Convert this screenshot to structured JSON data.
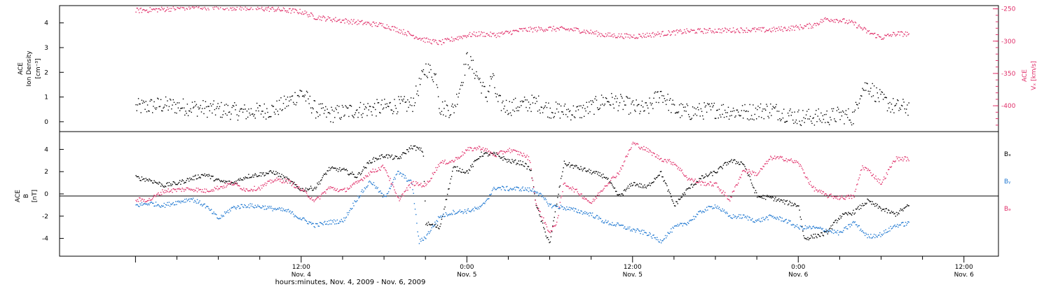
{
  "colors": {
    "black": "#000000",
    "pink": "#e0306a",
    "blue": "#1f78d1"
  },
  "x_axis": {
    "title": "hours:minutes, Nov.  4, 2009 - Nov.  6, 2009",
    "range_hours": [
      -5.5,
      62.5
    ],
    "ticks": [
      {
        "hour": 12,
        "time": "12:00",
        "date": "Nov. 4"
      },
      {
        "hour": 24,
        "time": "0:00",
        "date": "Nov. 5"
      },
      {
        "hour": 36,
        "time": "12:00",
        "date": "Nov. 5"
      },
      {
        "hour": 48,
        "time": "0:00",
        "date": "Nov. 6"
      },
      {
        "hour": 60,
        "time": "12:00",
        "date": "Nov. 6"
      }
    ]
  },
  "top_panel": {
    "left_label": [
      "ACE",
      "Ion Density",
      "[cm⁻³]"
    ],
    "right_label": [
      "ACE",
      "Vₓ [km/s]"
    ],
    "left_ticks": [
      "0",
      "1",
      "2",
      "3",
      "4"
    ],
    "right_ticks": [
      "-250",
      "-300",
      "-350",
      "-400"
    ]
  },
  "bottom_panel": {
    "left_label": [
      "ACE",
      "B",
      "[nT]"
    ],
    "left_ticks": [
      "4",
      "2",
      "0",
      "-2",
      "-4"
    ],
    "legend": [
      "Bₓ",
      "Bᵧ",
      "Bₔ"
    ]
  },
  "chart_data": [
    {
      "type": "scatter",
      "panel": "top",
      "ylabel": "ACE Ion Density [cm⁻³]",
      "ylim": [
        -0.4,
        4.7
      ],
      "y2label": "ACE Vx [km/s]",
      "y2lim": [
        -440,
        -245
      ],
      "y2_inverted": true,
      "series": [
        {
          "axis": "left",
          "color": "black",
          "spread": 0.35,
          "points": [
            [
              0,
              0.6
            ],
            [
              2,
              0.7
            ],
            [
              4,
              0.6
            ],
            [
              6,
              0.5
            ],
            [
              8,
              0.4
            ],
            [
              10,
              0.5
            ],
            [
              11,
              0.8
            ],
            [
              12,
              1.2
            ],
            [
              13,
              0.5
            ],
            [
              14,
              0.3
            ],
            [
              15,
              0.4
            ],
            [
              16,
              0.5
            ],
            [
              18,
              0.6
            ],
            [
              19,
              0.7
            ],
            [
              20,
              0.7
            ],
            [
              21,
              2.2
            ],
            [
              21.8,
              1.8
            ],
            [
              22,
              0.6
            ],
            [
              23,
              0.5
            ],
            [
              23.6,
              1.7
            ],
            [
              24,
              2.6
            ],
            [
              24.8,
              1.8
            ],
            [
              25.4,
              1.0
            ],
            [
              25.8,
              1.9
            ],
            [
              26.2,
              0.8
            ],
            [
              27,
              0.6
            ],
            [
              28,
              0.7
            ],
            [
              29,
              0.8
            ],
            [
              30,
              0.5
            ],
            [
              32,
              0.4
            ],
            [
              33,
              0.6
            ],
            [
              34,
              0.9
            ],
            [
              35,
              0.8
            ],
            [
              36,
              0.6
            ],
            [
              37,
              0.5
            ],
            [
              38,
              1.2
            ],
            [
              39,
              0.5
            ],
            [
              40,
              0.4
            ],
            [
              42,
              0.5
            ],
            [
              44,
              0.4
            ],
            [
              46,
              0.5
            ],
            [
              48,
              0.2
            ],
            [
              50,
              0.2
            ],
            [
              51,
              0.3
            ],
            [
              52,
              0.2
            ],
            [
              52.5,
              1.3
            ],
            [
              53,
              1.5
            ],
            [
              54,
              0.9
            ],
            [
              55,
              0.6
            ],
            [
              56,
              0.6
            ]
          ]
        },
        {
          "axis": "right",
          "color": "pink",
          "spread": 4,
          "points": [
            [
              0,
              -252
            ],
            [
              2,
              -250
            ],
            [
              4,
              -247
            ],
            [
              6,
              -247
            ],
            [
              8,
              -248
            ],
            [
              10,
              -250
            ],
            [
              12,
              -254
            ],
            [
              13,
              -262
            ],
            [
              14,
              -265
            ],
            [
              16,
              -270
            ],
            [
              18,
              -275
            ],
            [
              19,
              -282
            ],
            [
              20,
              -290
            ],
            [
              21,
              -298
            ],
            [
              22,
              -302
            ],
            [
              24,
              -290
            ],
            [
              25,
              -288
            ],
            [
              26,
              -290
            ],
            [
              28,
              -282
            ],
            [
              30,
              -280
            ],
            [
              32,
              -282
            ],
            [
              34,
              -290
            ],
            [
              36,
              -292
            ],
            [
              38,
              -288
            ],
            [
              40,
              -284
            ],
            [
              42,
              -283
            ],
            [
              44,
              -282
            ],
            [
              46,
              -282
            ],
            [
              48,
              -278
            ],
            [
              49,
              -275
            ],
            [
              50,
              -265
            ],
            [
              51,
              -267
            ],
            [
              52,
              -272
            ],
            [
              53,
              -285
            ],
            [
              54,
              -294
            ],
            [
              55,
              -288
            ],
            [
              56,
              -288
            ]
          ]
        }
      ]
    },
    {
      "type": "scatter",
      "panel": "bottom",
      "ylabel": "ACE B [nT]",
      "ylim": [
        -5.6,
        5.6
      ],
      "series": [
        {
          "name": "Bx",
          "color": "black",
          "spread": 0.2,
          "points": [
            [
              0,
              1.5
            ],
            [
              1,
              1.3
            ],
            [
              2,
              0.8
            ],
            [
              3,
              1.0
            ],
            [
              4,
              1.4
            ],
            [
              5,
              1.8
            ],
            [
              6,
              1.2
            ],
            [
              7,
              1.0
            ],
            [
              8,
              1.6
            ],
            [
              9,
              1.8
            ],
            [
              10,
              2.0
            ],
            [
              11,
              1.3
            ],
            [
              12,
              0.4
            ],
            [
              13,
              0.6
            ],
            [
              14,
              2.3
            ],
            [
              15,
              2.2
            ],
            [
              16,
              1.6
            ],
            [
              17,
              3.0
            ],
            [
              18,
              3.5
            ],
            [
              19,
              3.2
            ],
            [
              20,
              4.3
            ],
            [
              20.8,
              3.9
            ],
            [
              21,
              -2.6
            ],
            [
              22,
              -3.0
            ],
            [
              23,
              2.4
            ],
            [
              24,
              2.0
            ],
            [
              25,
              3.6
            ],
            [
              26,
              3.6
            ],
            [
              27,
              3.0
            ],
            [
              28,
              2.8
            ],
            [
              28.6,
              2.2
            ],
            [
              29,
              -1.0
            ],
            [
              29.6,
              -3.3
            ],
            [
              30,
              -4.4
            ],
            [
              30.3,
              -2.0
            ],
            [
              31,
              2.8
            ],
            [
              32,
              2.4
            ],
            [
              33,
              2.0
            ],
            [
              34,
              1.6
            ],
            [
              35,
              -0.2
            ],
            [
              36,
              1.0
            ],
            [
              37,
              0.6
            ],
            [
              38,
              2.0
            ],
            [
              39,
              -1.0
            ],
            [
              40,
              0.5
            ],
            [
              41,
              1.5
            ],
            [
              42,
              2.0
            ],
            [
              43,
              3.0
            ],
            [
              44,
              2.8
            ],
            [
              45,
              -0.2
            ],
            [
              46,
              -0.3
            ],
            [
              47,
              -0.7
            ],
            [
              48,
              -1.0
            ],
            [
              48.4,
              -4.0
            ],
            [
              49,
              -3.8
            ],
            [
              50,
              -3.5
            ],
            [
              51,
              -2.0
            ],
            [
              52,
              -1.6
            ],
            [
              53,
              -0.6
            ],
            [
              54,
              -1.3
            ],
            [
              55,
              -1.8
            ],
            [
              56,
              -1.0
            ]
          ]
        },
        {
          "name": "By",
          "color": "blue",
          "spread": 0.2,
          "points": [
            [
              0,
              -1.0
            ],
            [
              1,
              -0.8
            ],
            [
              2,
              -1.0
            ],
            [
              3,
              -0.7
            ],
            [
              4,
              -0.4
            ],
            [
              5,
              -1.0
            ],
            [
              6,
              -2.2
            ],
            [
              7,
              -1.2
            ],
            [
              8,
              -1.0
            ],
            [
              9,
              -1.1
            ],
            [
              10,
              -1.3
            ],
            [
              11,
              -1.5
            ],
            [
              12,
              -2.2
            ],
            [
              13,
              -2.8
            ],
            [
              14,
              -2.5
            ],
            [
              15,
              -2.4
            ],
            [
              16,
              -0.4
            ],
            [
              17,
              1.2
            ],
            [
              18,
              -0.3
            ],
            [
              19,
              2.0
            ],
            [
              20,
              1.0
            ],
            [
              20.5,
              -4.3
            ],
            [
              21,
              -3.8
            ],
            [
              22,
              -2.0
            ],
            [
              23,
              -1.6
            ],
            [
              24,
              -1.5
            ],
            [
              25,
              -1.2
            ],
            [
              26,
              0.6
            ],
            [
              27,
              0.5
            ],
            [
              28,
              0.5
            ],
            [
              29,
              0.3
            ],
            [
              30,
              -1.0
            ],
            [
              31,
              -1.2
            ],
            [
              32,
              -1.5
            ],
            [
              33,
              -1.8
            ],
            [
              34,
              -2.5
            ],
            [
              35,
              -2.8
            ],
            [
              36,
              -3.2
            ],
            [
              37,
              -3.5
            ],
            [
              38,
              -4.2
            ],
            [
              39,
              -3.0
            ],
            [
              40,
              -2.5
            ],
            [
              41,
              -1.5
            ],
            [
              42,
              -1.0
            ],
            [
              43,
              -2.0
            ],
            [
              44,
              -2.0
            ],
            [
              45,
              -2.4
            ],
            [
              46,
              -2.0
            ],
            [
              47,
              -2.3
            ],
            [
              48,
              -3.0
            ],
            [
              49,
              -3.0
            ],
            [
              50,
              -3.2
            ],
            [
              51,
              -3.5
            ],
            [
              52,
              -2.5
            ],
            [
              53,
              -3.8
            ],
            [
              54,
              -3.6
            ],
            [
              55,
              -2.8
            ],
            [
              56,
              -2.6
            ]
          ]
        },
        {
          "name": "Bz",
          "color": "pink",
          "spread": 0.2,
          "points": [
            [
              0,
              -0.5
            ],
            [
              1,
              -0.5
            ],
            [
              2,
              0.3
            ],
            [
              3,
              0.4
            ],
            [
              4,
              0.5
            ],
            [
              5,
              0.3
            ],
            [
              6,
              0.6
            ],
            [
              7,
              1.0
            ],
            [
              8,
              0.4
            ],
            [
              9,
              0.6
            ],
            [
              10,
              1.3
            ],
            [
              11,
              1.2
            ],
            [
              12,
              0.4
            ],
            [
              13,
              -0.6
            ],
            [
              14,
              0.6
            ],
            [
              15,
              0.3
            ],
            [
              16,
              1.0
            ],
            [
              17,
              2.0
            ],
            [
              18,
              2.5
            ],
            [
              19,
              -0.5
            ],
            [
              20,
              1.0
            ],
            [
              21,
              0.8
            ],
            [
              22,
              2.8
            ],
            [
              23,
              3.0
            ],
            [
              24,
              4.0
            ],
            [
              25,
              4.2
            ],
            [
              26,
              3.5
            ],
            [
              27,
              4.0
            ],
            [
              28,
              3.6
            ],
            [
              28.5,
              3.2
            ],
            [
              29,
              -1.0
            ],
            [
              30,
              -3.5
            ],
            [
              30.5,
              -2.4
            ],
            [
              31,
              1.0
            ],
            [
              32,
              0.2
            ],
            [
              33,
              -0.8
            ],
            [
              34,
              0.8
            ],
            [
              35,
              2.0
            ],
            [
              36,
              4.6
            ],
            [
              37,
              4.0
            ],
            [
              38,
              3.2
            ],
            [
              39,
              2.8
            ],
            [
              40,
              1.4
            ],
            [
              41,
              1.0
            ],
            [
              42,
              0.9
            ],
            [
              43,
              -0.5
            ],
            [
              44,
              2.2
            ],
            [
              45,
              1.8
            ],
            [
              46,
              3.3
            ],
            [
              47,
              3.2
            ],
            [
              48,
              2.8
            ],
            [
              49,
              0.6
            ],
            [
              50,
              -0.1
            ],
            [
              51,
              -0.3
            ],
            [
              52,
              -0.2
            ],
            [
              52.6,
              2.5
            ],
            [
              53,
              2.2
            ],
            [
              54,
              1.0
            ],
            [
              55,
              3.2
            ],
            [
              56,
              3.2
            ]
          ]
        }
      ]
    }
  ]
}
